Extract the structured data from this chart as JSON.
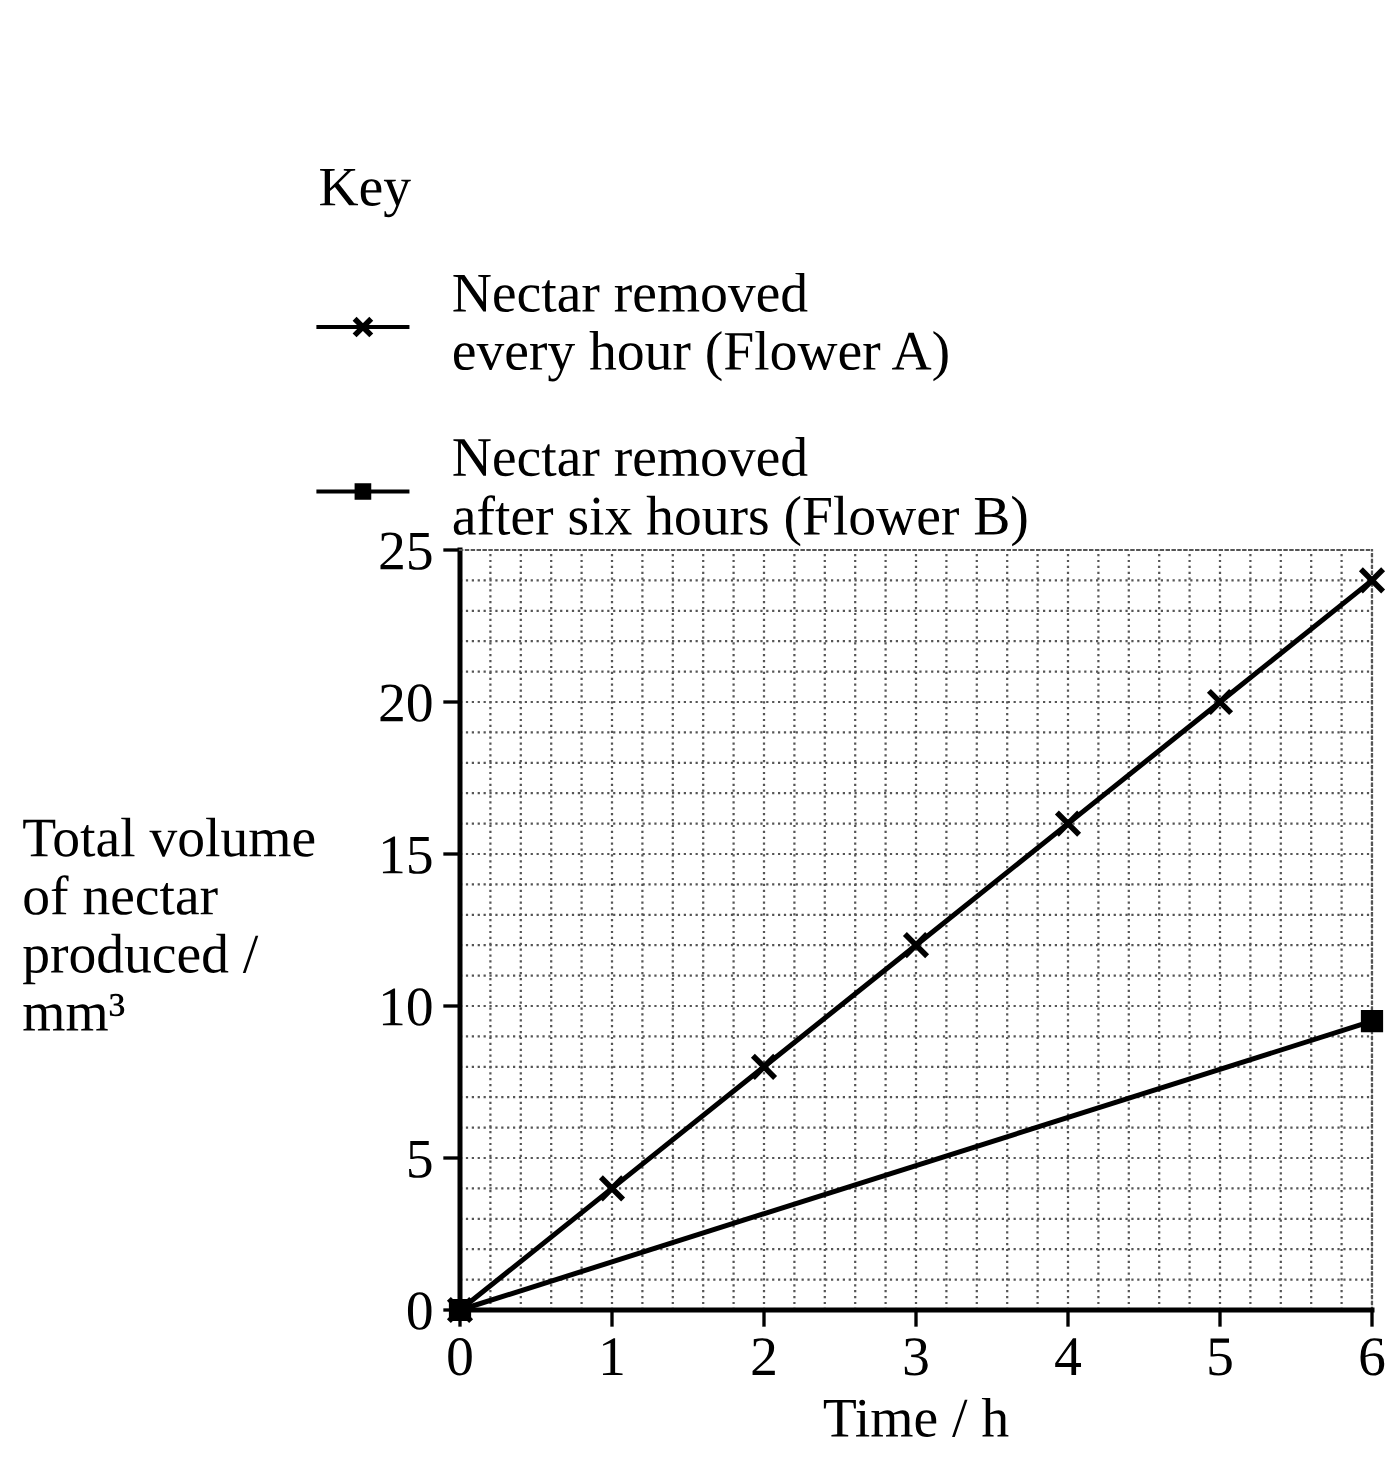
{
  "chart_data": {
    "type": "line",
    "xlabel": "Time / h",
    "ylabel": "Total volume\nof nectar\nproduced /\nmm³",
    "legend_title": "Key",
    "series": [
      {
        "name": "Nectar removed\nevery hour (Flower A)",
        "color": "#000000",
        "x": [
          0,
          1,
          2,
          3,
          4,
          5,
          6
        ],
        "values": [
          0,
          4,
          8,
          12,
          16,
          20,
          24
        ],
        "marker": "cross"
      },
      {
        "name": "Nectar removed\nafter six hours (Flower B)",
        "color": "#000000",
        "x": [
          0,
          6
        ],
        "values": [
          0,
          9.5
        ],
        "marker": "square"
      }
    ],
    "xlim": [
      0,
      6
    ],
    "ylim": [
      0,
      25
    ],
    "xticks": [
      0,
      1,
      2,
      3,
      4,
      5,
      6
    ],
    "yticks": [
      0,
      5,
      10,
      15,
      20,
      25
    ],
    "grid": true,
    "legend": "top",
    "line_style": "solid"
  }
}
